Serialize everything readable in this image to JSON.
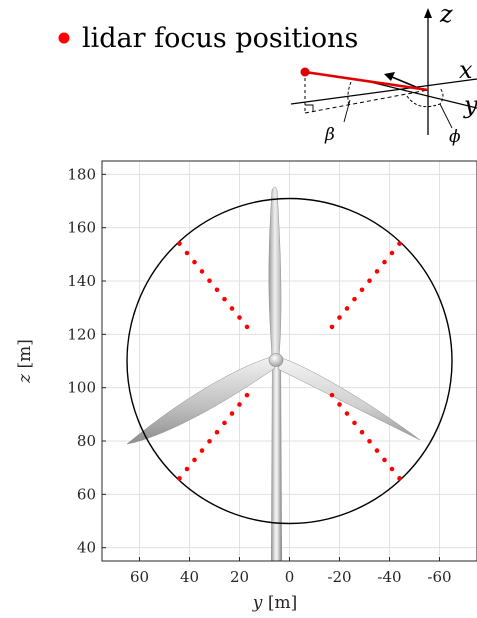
{
  "legend": {
    "label": "lidar focus positions",
    "marker_color": "#ff0000"
  },
  "coordinate_diagram": {
    "axis_x": "x",
    "axis_y": "y",
    "axis_z": "z",
    "angle_elevation": "β",
    "angle_azimuth": "ϕ",
    "beam_color": "#e00000"
  },
  "chart_data": {
    "type": "scatter",
    "xlabel_var": "y",
    "xlabel_unit": "[m]",
    "ylabel_var": "z",
    "ylabel_unit": "[m]",
    "xlim": [
      -75,
      75
    ],
    "x_reversed": true,
    "ylim": [
      35,
      185
    ],
    "xticks": [
      60,
      40,
      20,
      0,
      -20,
      -40,
      -60
    ],
    "xtick_labels": [
      "60",
      "40",
      "20",
      "0",
      "-20",
      "-40",
      "-60"
    ],
    "yticks": [
      40,
      60,
      80,
      100,
      120,
      140,
      160,
      180
    ],
    "ytick_labels": [
      "40",
      "60",
      "80",
      "100",
      "120",
      "140",
      "160",
      "180"
    ],
    "grid": true,
    "rotor": {
      "center_y": 0,
      "center_z": 110,
      "radius": 65
    },
    "turbine": {
      "hub_y": 0,
      "hub_z": 109.5
    },
    "series": [
      {
        "color": "#ff0000",
        "points": [
          [
            44,
            154
          ],
          [
            41,
            150.5
          ],
          [
            38,
            147.1
          ],
          [
            35,
            143.6
          ],
          [
            32,
            140.1
          ],
          [
            29,
            136.7
          ],
          [
            26,
            133.2
          ],
          [
            23,
            129.7
          ],
          [
            20,
            126.3
          ],
          [
            17,
            122.8
          ],
          [
            -44,
            154
          ],
          [
            -41,
            150.5
          ],
          [
            -38,
            147.1
          ],
          [
            -35,
            143.6
          ],
          [
            -32,
            140.1
          ],
          [
            -29,
            136.7
          ],
          [
            -26,
            133.2
          ],
          [
            -23,
            129.7
          ],
          [
            -20,
            126.3
          ],
          [
            -17,
            122.8
          ],
          [
            44,
            66
          ],
          [
            41,
            69.5
          ],
          [
            38,
            72.9
          ],
          [
            35,
            76.4
          ],
          [
            32,
            79.9
          ],
          [
            29,
            83.3
          ],
          [
            26,
            86.8
          ],
          [
            23,
            90.3
          ],
          [
            20,
            93.7
          ],
          [
            17,
            97.2
          ],
          [
            -44,
            66
          ],
          [
            -41,
            69.5
          ],
          [
            -38,
            72.9
          ],
          [
            -35,
            76.4
          ],
          [
            -32,
            79.9
          ],
          [
            -29,
            83.3
          ],
          [
            -26,
            86.8
          ],
          [
            -23,
            90.3
          ],
          [
            -20,
            93.7
          ],
          [
            -17,
            97.2
          ]
        ]
      }
    ]
  }
}
